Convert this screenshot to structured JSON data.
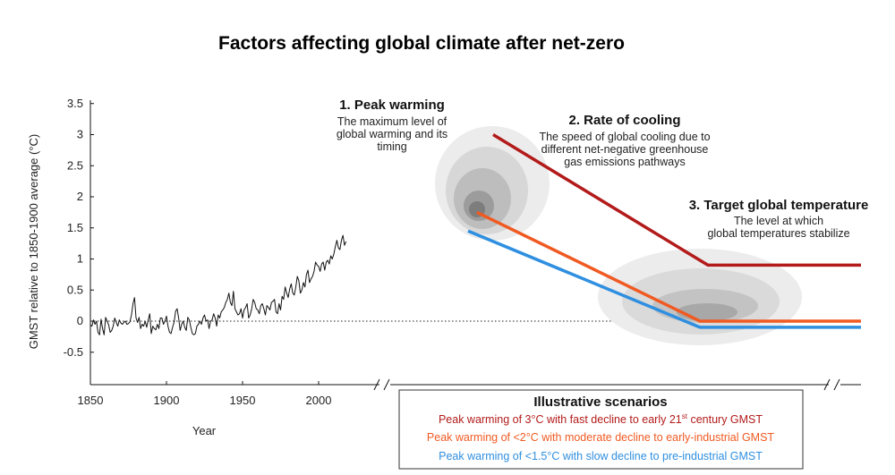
{
  "chart_data": {
    "type": "line",
    "title": "Factors affecting global climate after net-zero",
    "xlabel": "Year",
    "ylabel": "GMST relative to 1850-1900 average (°C)",
    "xlim": [
      1850,
      2020
    ],
    "ylim": [
      -1.0,
      3.6
    ],
    "x_ticks": [
      "1850",
      "1900",
      "1950",
      "2000"
    ],
    "y_ticks": [
      "3.5",
      "3",
      "2.5",
      "2",
      "1.5",
      "1",
      "0.5",
      "0",
      "-0.5"
    ],
    "zero_line": true,
    "historical": {
      "name": "",
      "x_start": 1850,
      "x_step": 1,
      "values": [
        -0.06,
        -0.08,
        0.02,
        -0.05,
        0.0,
        -0.18,
        -0.22,
        0.03,
        -0.12,
        -0.22,
        0.06,
        0.0,
        -0.06,
        -0.18,
        -0.15,
        -0.08,
        0.05,
        -0.02,
        -0.08,
        0.02,
        -0.03,
        -0.05,
        -0.02,
        0.0,
        -0.05,
        -0.04,
        -0.01,
        0.1,
        0.28,
        0.38,
        0.05,
        -0.02,
        0.06,
        -0.12,
        -0.05,
        -0.08,
        0.0,
        -0.1,
        0.02,
        0.12,
        -0.2,
        -0.08,
        -0.12,
        -0.14,
        -0.05,
        -0.12,
        0.05,
        0.05,
        -0.05,
        0.0,
        0.08,
        -0.08,
        -0.18,
        -0.2,
        -0.1,
        -0.02,
        0.16,
        0.2,
        0.05,
        -0.15,
        -0.05,
        0.0,
        -0.1,
        -0.15,
        0.06,
        0.02,
        -0.1,
        -0.2,
        -0.22,
        -0.2,
        -0.08,
        -0.05,
        0.0,
        -0.05,
        0.05,
        0.1,
        0.0,
        0.02,
        -0.12,
        0.0,
        0.02,
        0.12,
        0.05,
        -0.08,
        0.1,
        0.05,
        0.15,
        0.18,
        0.22,
        0.3,
        0.35,
        0.45,
        0.3,
        0.25,
        0.48,
        0.2,
        0.15,
        0.1,
        0.12,
        0.2,
        0.05,
        0.18,
        0.22,
        0.28,
        0.05,
        0.1,
        0.2,
        0.35,
        0.3,
        0.2,
        0.18,
        0.12,
        0.25,
        0.28,
        0.2,
        0.1,
        0.25,
        0.22,
        0.18,
        0.3,
        0.32,
        0.35,
        0.15,
        0.12,
        0.28,
        0.18,
        0.4,
        0.35,
        0.55,
        0.45,
        0.38,
        0.52,
        0.6,
        0.45,
        0.42,
        0.55,
        0.72,
        0.65,
        0.45,
        0.5,
        0.62,
        0.55,
        0.75,
        0.82,
        0.62,
        0.68,
        0.72,
        0.8,
        0.95,
        0.9,
        0.88,
        0.8,
        0.92,
        0.95,
        0.82,
        0.95,
        0.98,
        0.92,
        1.05,
        1.0,
        1.08,
        1.2,
        1.3,
        1.18,
        1.15,
        1.3,
        1.38,
        1.22,
        1.28
      ]
    },
    "annotations": [
      {
        "heading": "1. Peak warming",
        "lines": [
          "The maximum level of",
          "global warming and its",
          "timing"
        ]
      },
      {
        "heading": "2. Rate of cooling",
        "lines": [
          "The speed of global cooling due to",
          "different net-negative greenhouse",
          "gas emissions pathways"
        ]
      },
      {
        "heading": "3. Target global temperature",
        "lines": [
          "The level at which",
          "global temperatures stabilize"
        ]
      }
    ],
    "legend": {
      "title": "Illustrative scenarios",
      "placement": "bottom-right",
      "items": [
        {
          "label_pre": "Peak warming of 3°C with fast decline to early 21",
          "sup": "st",
          "label_post": " century GMST",
          "color": "#b31b1b"
        },
        {
          "label_pre": "Peak warming of <2°C with moderate decline to early-industrial GMST",
          "sup": "",
          "label_post": "",
          "color": "#f05a22"
        },
        {
          "label_pre": "Peak warming of <1.5°C with slow decline to pre-industrial GMST",
          "sup": "",
          "label_post": "",
          "color": "#2f8fe0"
        }
      ]
    },
    "scenarios": [
      {
        "name": "",
        "color": "#b31b1b",
        "peak": 3.0,
        "final": 0.9
      },
      {
        "name": "",
        "color": "#f05a22",
        "peak": 1.75,
        "final": 0.0
      },
      {
        "name": "",
        "color": "#2f8fe0",
        "peak": 1.45,
        "final": -0.1
      }
    ]
  }
}
